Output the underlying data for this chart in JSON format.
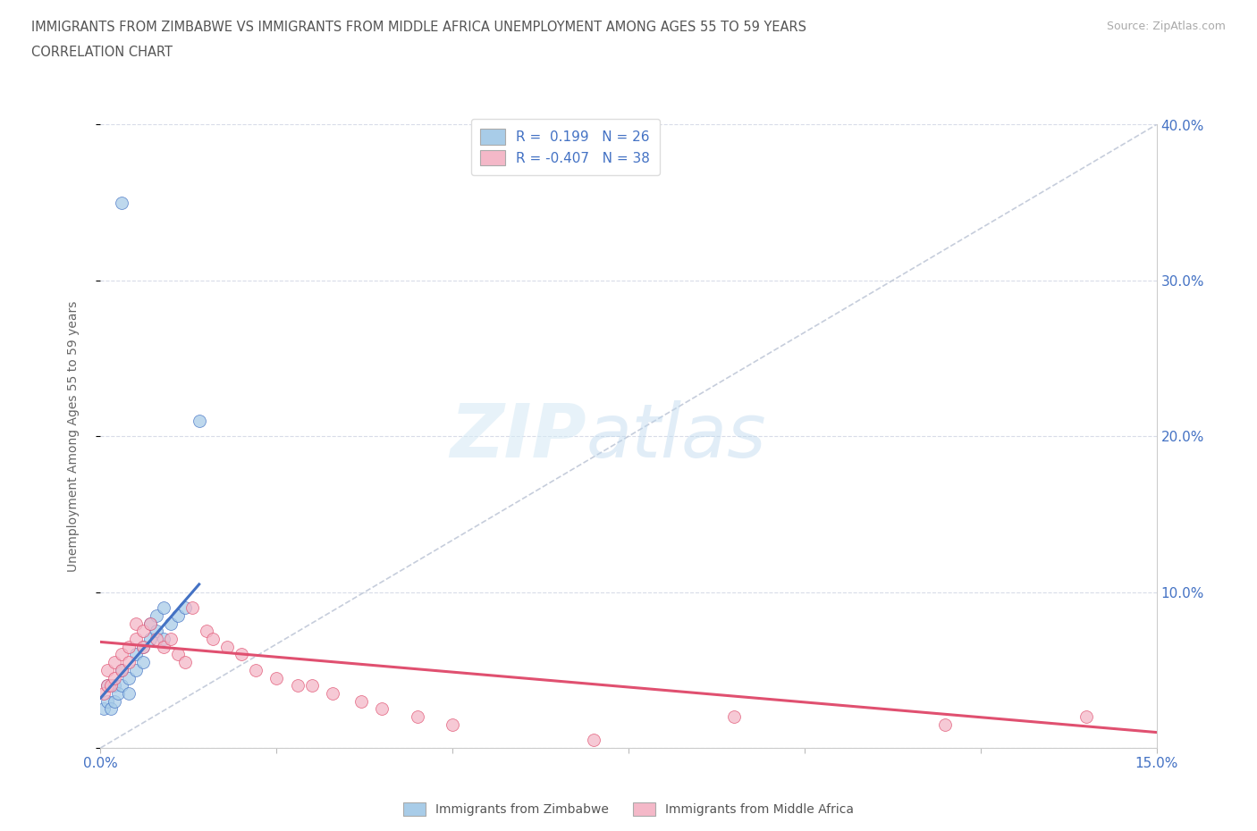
{
  "title_line1": "IMMIGRANTS FROM ZIMBABWE VS IMMIGRANTS FROM MIDDLE AFRICA UNEMPLOYMENT AMONG AGES 55 TO 59 YEARS",
  "title_line2": "CORRELATION CHART",
  "source_text": "Source: ZipAtlas.com",
  "ylabel": "Unemployment Among Ages 55 to 59 years",
  "xlim": [
    0.0,
    0.15
  ],
  "ylim": [
    0.0,
    0.4
  ],
  "color_zimbabwe": "#a8cce8",
  "color_middle_africa": "#f4b8c8",
  "color_trend_zimbabwe": "#4472c4",
  "color_trend_middle_africa": "#e05070",
  "color_diagonal": "#c0c8d8",
  "legend_label1": "Immigrants from Zimbabwe",
  "legend_label2": "Immigrants from Middle Africa",
  "zimbabwe_x": [
    0.0005,
    0.001,
    0.001,
    0.0015,
    0.002,
    0.002,
    0.0025,
    0.003,
    0.003,
    0.003,
    0.004,
    0.004,
    0.005,
    0.005,
    0.006,
    0.006,
    0.007,
    0.007,
    0.008,
    0.008,
    0.009,
    0.009,
    0.01,
    0.011,
    0.012,
    0.014
  ],
  "zimbabwe_y": [
    0.025,
    0.03,
    0.04,
    0.025,
    0.03,
    0.04,
    0.035,
    0.35,
    0.04,
    0.05,
    0.035,
    0.045,
    0.05,
    0.06,
    0.055,
    0.065,
    0.07,
    0.08,
    0.075,
    0.085,
    0.07,
    0.09,
    0.08,
    0.085,
    0.09,
    0.21
  ],
  "middle_africa_x": [
    0.0005,
    0.001,
    0.001,
    0.0015,
    0.002,
    0.002,
    0.003,
    0.003,
    0.004,
    0.004,
    0.005,
    0.005,
    0.006,
    0.006,
    0.007,
    0.008,
    0.009,
    0.01,
    0.011,
    0.012,
    0.013,
    0.015,
    0.016,
    0.018,
    0.02,
    0.022,
    0.025,
    0.028,
    0.03,
    0.033,
    0.037,
    0.04,
    0.045,
    0.05,
    0.07,
    0.09,
    0.12,
    0.14
  ],
  "middle_africa_y": [
    0.035,
    0.04,
    0.05,
    0.04,
    0.045,
    0.055,
    0.05,
    0.06,
    0.055,
    0.065,
    0.07,
    0.08,
    0.065,
    0.075,
    0.08,
    0.07,
    0.065,
    0.07,
    0.06,
    0.055,
    0.09,
    0.075,
    0.07,
    0.065,
    0.06,
    0.05,
    0.045,
    0.04,
    0.04,
    0.035,
    0.03,
    0.025,
    0.02,
    0.015,
    0.005,
    0.02,
    0.015,
    0.02
  ],
  "trend_zim_x0": 0.0,
  "trend_zim_x1": 0.014,
  "trend_zim_y0": 0.032,
  "trend_zim_y1": 0.105,
  "trend_mid_x0": 0.0,
  "trend_mid_x1": 0.15,
  "trend_mid_y0": 0.068,
  "trend_mid_y1": 0.01
}
